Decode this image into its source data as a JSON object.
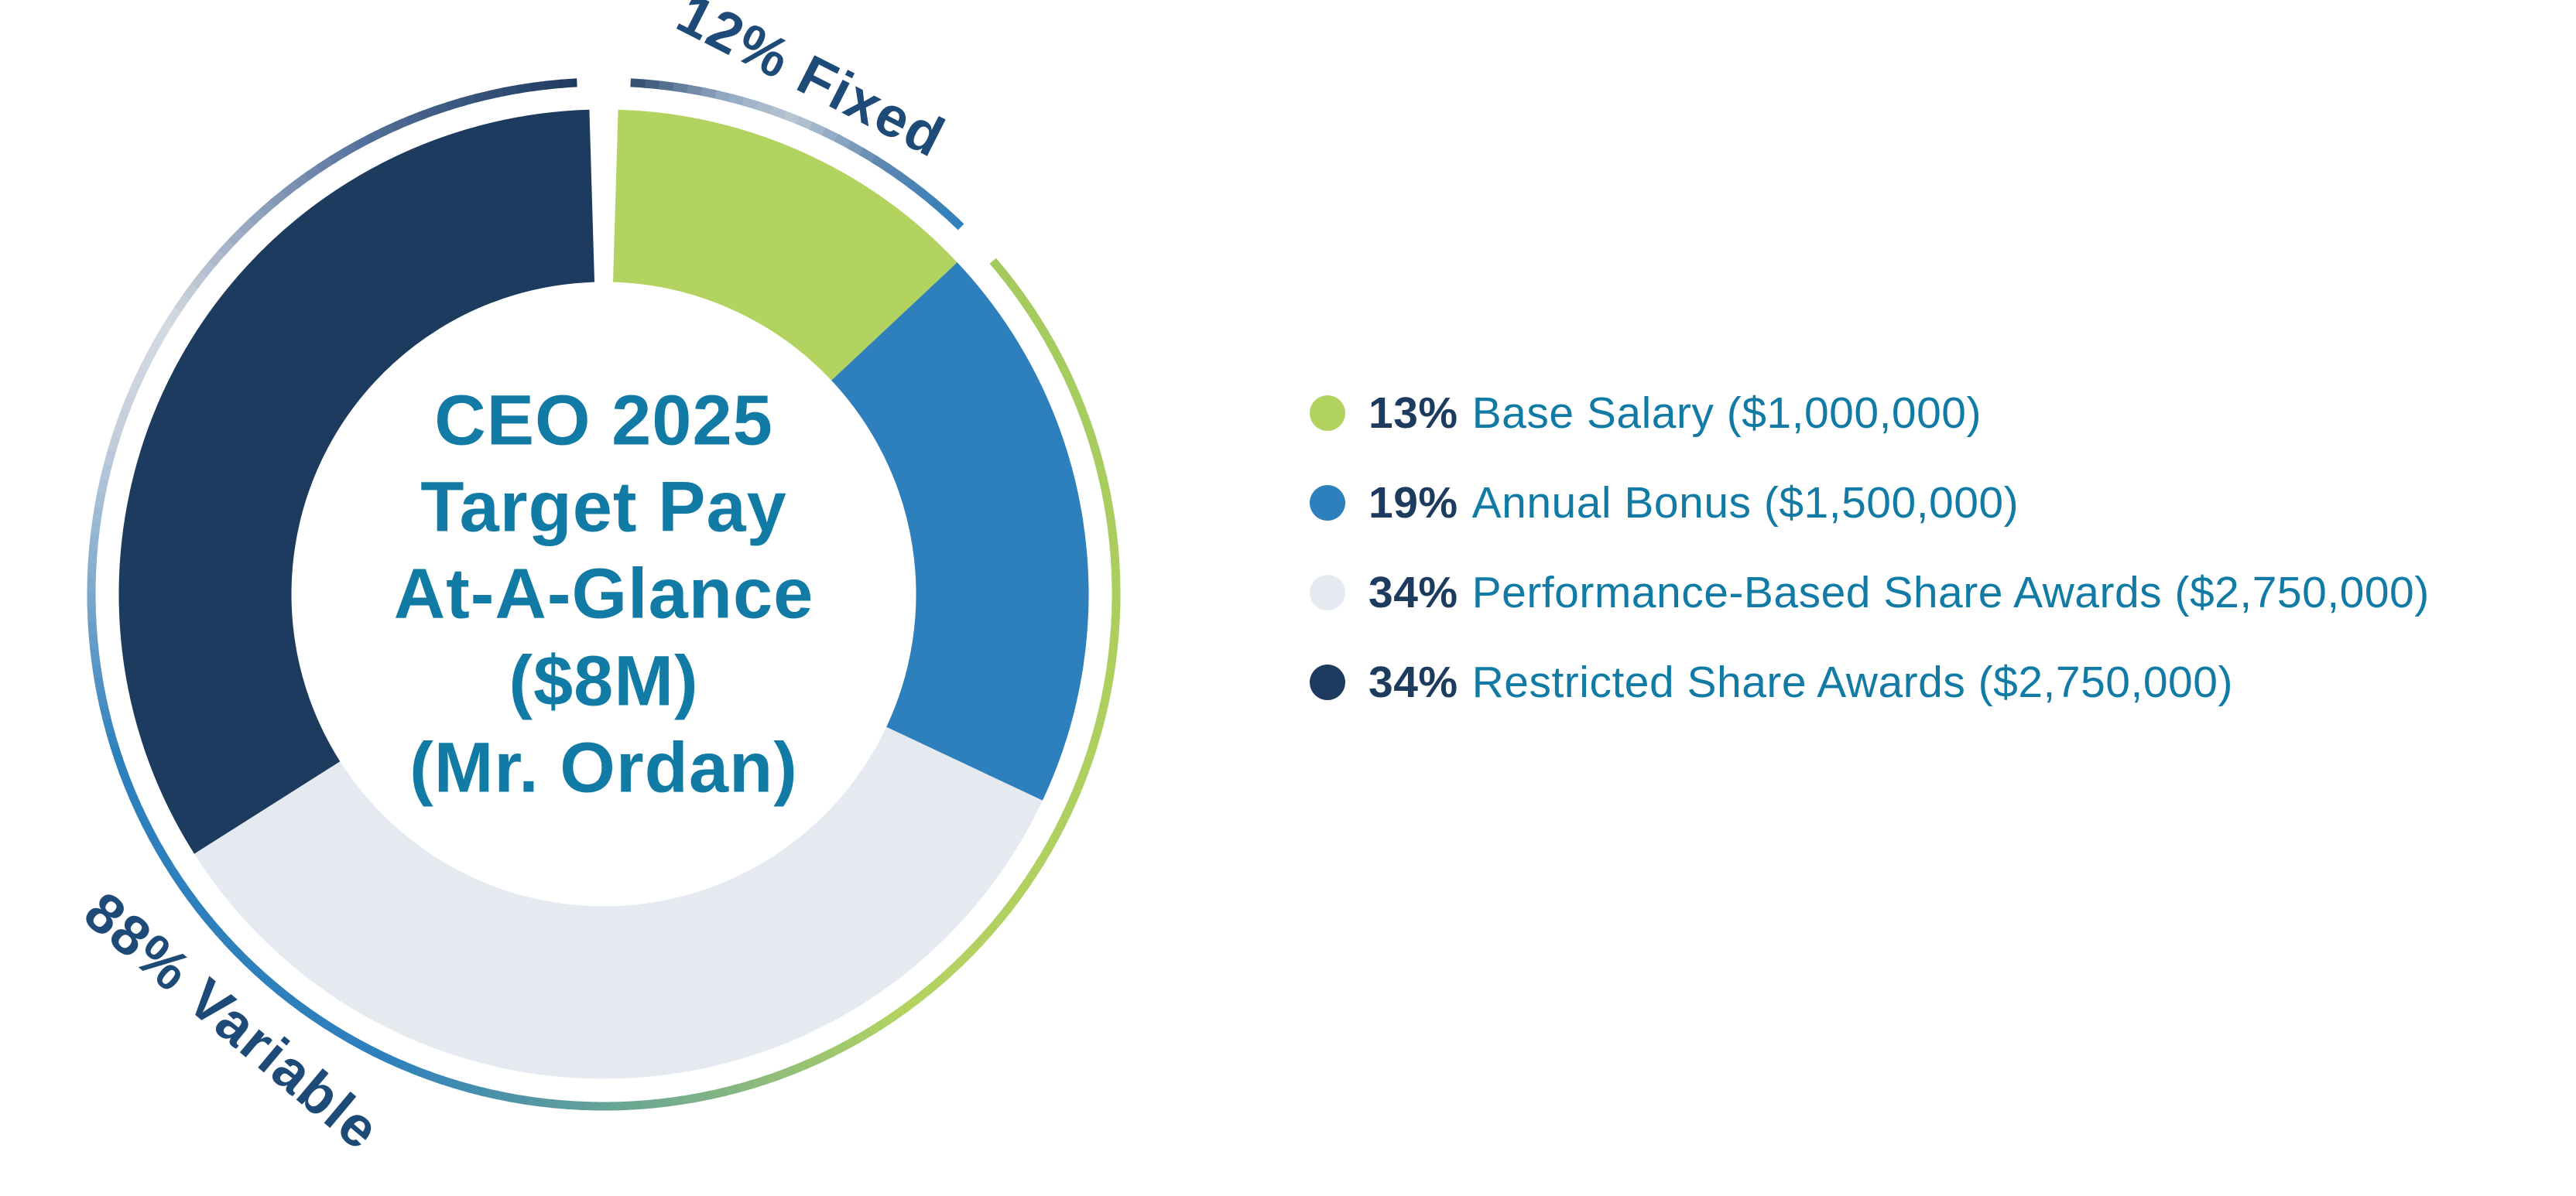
{
  "chart_data": {
    "type": "pie",
    "variant": "donut",
    "title": "CEO 2025 Target Pay At-A-Glance ($8M) (Mr. Ordan)",
    "center_lines": [
      "CEO 2025",
      "Target Pay",
      "At-A-Glance",
      "($8M)",
      "(Mr. Ordan)"
    ],
    "total_label": "$8M",
    "start_angle_deg": 0,
    "direction": "clockwise",
    "legend_position": "right",
    "segments": [
      {
        "label": "Base Salary",
        "percent": 13,
        "amount": "$1,000,000",
        "color": "#b3d361"
      },
      {
        "label": "Annual Bonus",
        "percent": 19,
        "amount": "$1,500,000",
        "color": "#2e80bd"
      },
      {
        "label": "Performance-Based Share Awards",
        "percent": 34,
        "amount": "$2,750,000",
        "color": "#e5eaf1"
      },
      {
        "label": "Restricted Share Awards",
        "percent": 34,
        "amount": "$2,750,000",
        "color": "#1d3a5f"
      }
    ],
    "outer_arcs": [
      {
        "label": "12% Fixed",
        "percent": 12,
        "start_pct": 0,
        "end_pct": 13,
        "start_gap_deg": 3,
        "end_gap_deg": 2.6,
        "gradient": [
          {
            "a": 3,
            "c": "#2c4a6e"
          },
          {
            "a": 14,
            "c": "#93aac4"
          },
          {
            "a": 22,
            "c": "#b9c6d3"
          },
          {
            "a": 33,
            "c": "#5e87b0"
          },
          {
            "a": 44,
            "c": "#2e80bd"
          }
        ]
      },
      {
        "label": "88% Variable",
        "percent": 88,
        "start_pct": 13,
        "end_pct": 100,
        "start_gap_deg": 2.6,
        "end_gap_deg": 3,
        "gradient": [
          {
            "a": 49,
            "c": "#a4ca5e"
          },
          {
            "a": 145,
            "c": "#b3d361"
          },
          {
            "a": 205,
            "c": "#2e80bd"
          },
          {
            "a": 252,
            "c": "#2e80bd"
          },
          {
            "a": 288,
            "c": "#c3cedb"
          },
          {
            "a": 302,
            "c": "#d4dae2"
          },
          {
            "a": 332,
            "c": "#54719b"
          },
          {
            "a": 357,
            "c": "#1e3a5f"
          }
        ]
      }
    ]
  },
  "legend": {
    "items": [
      {
        "percent": "13%",
        "text": "Base Salary ($1,000,000)",
        "color": "#b3d361"
      },
      {
        "percent": "19%",
        "text": "Annual Bonus ($1,500,000)",
        "color": "#2e80bd"
      },
      {
        "percent": "34%",
        "text": "Performance-Based Share Awards ($2,750,000)",
        "color": "#e5eaf1"
      },
      {
        "percent": "34%",
        "text": "Restricted Share Awards ($2,750,000)",
        "color": "#1d3a5f"
      }
    ]
  },
  "colors": {
    "teal_text": "#117ba6",
    "navy_text": "#1d3a5f",
    "arc_label_text": "#1e4a78",
    "background": "#ffffff"
  }
}
